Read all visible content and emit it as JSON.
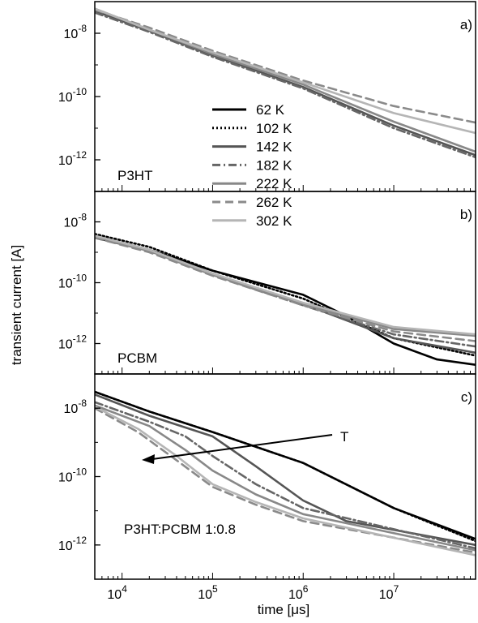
{
  "chart_data": {
    "type": "line",
    "xlabel": "time [μs]",
    "ylabel": "transient current [A]",
    "x_scale": "log",
    "y_scale": "log",
    "xlim": [
      5000,
      80000000
    ],
    "x_ticks": [
      {
        "value": 10000,
        "base": "10",
        "exp": "4"
      },
      {
        "value": 100000,
        "base": "10",
        "exp": "5"
      },
      {
        "value": 1000000,
        "base": "10",
        "exp": "6"
      },
      {
        "value": 10000000,
        "base": "10",
        "exp": "7"
      }
    ],
    "legend": {
      "placement": "panel a, center-left",
      "entries": [
        {
          "label": "62 K",
          "color": "#000000",
          "dash": "solid"
        },
        {
          "label": "102 K",
          "color": "#000000",
          "dash": "dot"
        },
        {
          "label": "142 K",
          "color": "#555555",
          "dash": "solid"
        },
        {
          "label": "182 K",
          "color": "#666666",
          "dash": "dashdot"
        },
        {
          "label": "222 K",
          "color": "#888888",
          "dash": "solid"
        },
        {
          "label": "262 K",
          "color": "#8a8a8a",
          "dash": "dash"
        },
        {
          "label": "302 K",
          "color": "#b5b5b5",
          "dash": "solid"
        }
      ]
    },
    "panels": [
      {
        "letter": "a)",
        "material": "P3HT",
        "ylim": [
          1e-13,
          1e-07
        ],
        "y_ticks": [
          {
            "value": 1e-08,
            "base": "10",
            "exp": "-8"
          },
          {
            "value": 1e-10,
            "base": "10",
            "exp": "-10"
          },
          {
            "value": 1e-12,
            "base": "10",
            "exp": "-12"
          }
        ],
        "series": [
          {
            "temp": "142 K",
            "x": [
              5000,
              20000,
              100000,
              1000000,
              10000000,
              80000000
            ],
            "y": [
              5e-08,
              1.2e-08,
              2e-09,
              2e-10,
              1.2e-11,
              1.4e-12
            ]
          },
          {
            "temp": "182 K",
            "x": [
              5000,
              20000,
              100000,
              1000000,
              10000000,
              80000000
            ],
            "y": [
              4.5e-08,
              1.1e-08,
              1.8e-09,
              1.8e-10,
              1e-11,
              1.2e-12
            ]
          },
          {
            "temp": "222 K",
            "x": [
              5000,
              20000,
              100000,
              1000000,
              10000000,
              80000000
            ],
            "y": [
              6e-08,
              1.3e-08,
              2.2e-09,
              2.4e-10,
              1.6e-11,
              1.8e-12
            ]
          },
          {
            "temp": "262 K",
            "x": [
              5000,
              20000,
              100000,
              1000000,
              10000000,
              80000000
            ],
            "y": [
              5.5e-08,
              1.5e-08,
              2.8e-09,
              3.2e-10,
              5e-11,
              1.5e-11
            ]
          },
          {
            "temp": "302 K",
            "x": [
              5000,
              20000,
              100000,
              1000000,
              10000000,
              80000000
            ],
            "y": [
              6e-08,
              1.3e-08,
              2.5e-09,
              2.8e-10,
              3e-11,
              7e-12
            ]
          }
        ]
      },
      {
        "letter": "b)",
        "material": "PCBM",
        "ylim": [
          1e-13,
          1e-07
        ],
        "y_ticks": [
          {
            "value": 1e-08,
            "base": "10",
            "exp": "-8"
          },
          {
            "value": 1e-10,
            "base": "10",
            "exp": "-10"
          },
          {
            "value": 1e-12,
            "base": "10",
            "exp": "-12"
          }
        ],
        "series": [
          {
            "temp": "62 K",
            "x": [
              5000,
              20000,
              100000,
              1000000,
              3000000,
              10000000,
              30000000,
              80000000
            ],
            "y": [
              3e-09,
              1.2e-09,
              2.5e-10,
              4e-11,
              8e-12,
              1e-12,
              3e-13,
              2e-13
            ]
          },
          {
            "temp": "102 K",
            "x": [
              5000,
              20000,
              100000,
              1000000,
              10000000,
              80000000
            ],
            "y": [
              4e-09,
              1.5e-09,
              2.5e-10,
              3e-11,
              1.5e-12,
              4e-13
            ]
          },
          {
            "temp": "142 K",
            "x": [
              5000,
              20000,
              100000,
              1000000,
              10000000,
              80000000
            ],
            "y": [
              3.5e-09,
              1.2e-09,
              2e-10,
              2e-11,
              1.5e-12,
              5e-13
            ]
          },
          {
            "temp": "182 K",
            "x": [
              5000,
              20000,
              100000,
              1000000,
              10000000,
              80000000
            ],
            "y": [
              3e-09,
              1.1e-09,
              1.8e-10,
              1.8e-11,
              2e-12,
              8e-13
            ]
          },
          {
            "temp": "222 K",
            "x": [
              5000,
              20000,
              100000,
              1000000,
              10000000,
              80000000
            ],
            "y": [
              3.2e-09,
              1.1e-09,
              1.8e-10,
              2e-11,
              3e-12,
              1.8e-12
            ]
          },
          {
            "temp": "262 K",
            "x": [
              5000,
              20000,
              100000,
              1000000,
              10000000,
              80000000
            ],
            "y": [
              3e-09,
              1e-09,
              1.7e-10,
              1.8e-11,
              2.5e-12,
              1.2e-12
            ]
          },
          {
            "temp": "302 K",
            "x": [
              5000,
              20000,
              100000,
              1000000,
              10000000,
              80000000
            ],
            "y": [
              3.5e-09,
              1.2e-09,
              2e-10,
              2.2e-11,
              3.5e-12,
              2e-12
            ]
          }
        ]
      },
      {
        "letter": "c)",
        "material": "P3HT:PCBM 1:0.8",
        "ylim": [
          1e-13,
          1e-07
        ],
        "y_ticks": [
          {
            "value": 1e-08,
            "base": "10",
            "exp": "-8"
          },
          {
            "value": 1e-10,
            "base": "10",
            "exp": "-10"
          },
          {
            "value": 1e-12,
            "base": "10",
            "exp": "-12"
          }
        ],
        "annotation": {
          "text": "T"
        },
        "series": [
          {
            "temp": "62 K",
            "x": [
              5000,
              20000,
              100000,
              1000000,
              10000000,
              80000000
            ],
            "y": [
              3e-08,
              8e-09,
              2e-09,
              2.5e-10,
              1.2e-11,
              1.5e-12
            ]
          },
          {
            "temp": "102 K",
            "x": [
              5000,
              20000,
              100000,
              1000000,
              10000000,
              80000000
            ],
            "y": [
              3e-08,
              8e-09,
              2e-09,
              2.5e-10,
              1.2e-11,
              1.3e-12
            ]
          },
          {
            "temp": "142 K",
            "x": [
              5000,
              20000,
              100000,
              300000,
              1000000,
              3000000,
              80000000
            ],
            "y": [
              2.5e-08,
              6e-09,
              1.5e-09,
              2e-10,
              2e-11,
              5e-12,
              1e-12
            ]
          },
          {
            "temp": "182 K",
            "x": [
              5000,
              20000,
              50000,
              100000,
              300000,
              1000000,
              80000000
            ],
            "y": [
              1.5e-08,
              4e-09,
              1.5e-09,
              4e-10,
              6e-11,
              1.2e-11,
              8e-13
            ]
          },
          {
            "temp": "222 K",
            "x": [
              5000,
              20000,
              50000,
              100000,
              300000,
              1000000,
              80000000
            ],
            "y": [
              1.2e-08,
              3e-09,
              6e-10,
              1.5e-10,
              3e-11,
              8e-12,
              7e-13
            ]
          },
          {
            "temp": "262 K",
            "x": [
              5000,
              15000,
              40000,
              100000,
              300000,
              1000000,
              80000000
            ],
            "y": [
              1e-08,
              2e-09,
              3e-10,
              5e-11,
              1.5e-11,
              5e-12,
              6e-13
            ]
          },
          {
            "temp": "302 K",
            "x": [
              5000,
              15000,
              40000,
              100000,
              300000,
              1000000,
              80000000
            ],
            "y": [
              1.1e-08,
              2.5e-09,
              4e-10,
              6e-11,
              1.8e-11,
              6e-12,
              5e-13
            ]
          }
        ]
      }
    ]
  }
}
